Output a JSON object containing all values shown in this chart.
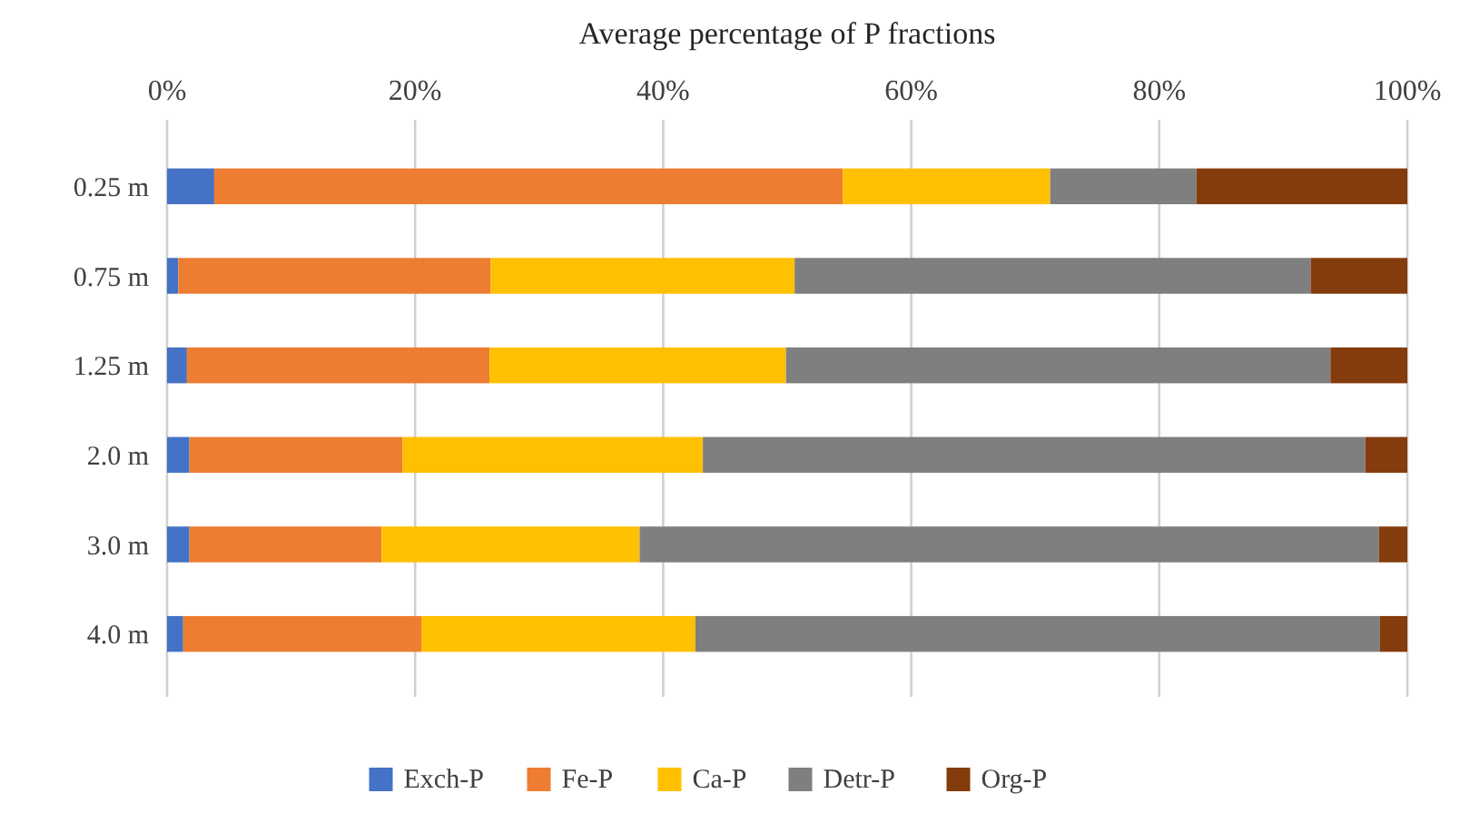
{
  "chart_data": {
    "type": "bar",
    "orientation": "horizontal",
    "stacked": true,
    "xlabel": "Average percentage of P fractions",
    "categories": [
      "0.25 m",
      "0.75 m",
      "1.25 m",
      "2.0 m",
      "3.0 m",
      "4.0 m"
    ],
    "series": [
      {
        "name": "Exch-P",
        "color": "#4472c4",
        "values": [
          3.8,
          0.9,
          1.6,
          1.8,
          1.8,
          1.3
        ]
      },
      {
        "name": "Fe-P",
        "color": "#ed7d31",
        "values": [
          50.7,
          25.2,
          24.4,
          17.2,
          15.5,
          19.2
        ]
      },
      {
        "name": "Ca-P",
        "color": "#ffc000",
        "values": [
          16.7,
          24.5,
          23.9,
          24.2,
          20.8,
          22.1
        ]
      },
      {
        "name": "Detr-P",
        "color": "#7f7f7f",
        "values": [
          11.8,
          41.6,
          43.9,
          53.4,
          59.6,
          55.2
        ]
      },
      {
        "name": "Org-P",
        "color": "#843c0c",
        "values": [
          17.0,
          7.8,
          6.2,
          3.4,
          2.3,
          2.2
        ]
      }
    ],
    "xlim": [
      0,
      100
    ],
    "xticks": [
      {
        "value": 0,
        "label": "0%"
      },
      {
        "value": 20,
        "label": "20%"
      },
      {
        "value": 40,
        "label": "40%"
      },
      {
        "value": 60,
        "label": "60%"
      },
      {
        "value": 80,
        "label": "80%"
      },
      {
        "value": 100,
        "label": "100%"
      }
    ],
    "grid": "x",
    "legend": "bottom"
  }
}
